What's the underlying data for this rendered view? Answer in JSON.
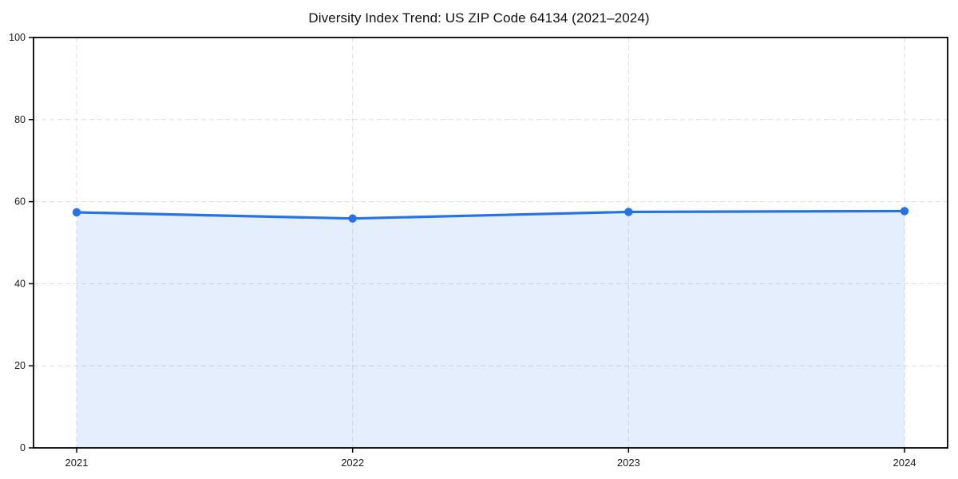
{
  "page": {
    "background_color": "#ffffff"
  },
  "chart_data": {
    "type": "area",
    "title": "Diversity Index Trend: US ZIP Code 64134 (2021–2024)",
    "x": [
      2021,
      2022,
      2023,
      2024
    ],
    "xtick_labels": [
      "2021",
      "2022",
      "2023",
      "2024"
    ],
    "series": [
      {
        "name": "Diversity Index",
        "values": [
          57.4,
          55.9,
          57.5,
          57.7
        ]
      }
    ],
    "xlabel": "",
    "ylabel": "",
    "ylim": [
      0,
      100
    ],
    "yticks": [
      0,
      20,
      40,
      60,
      80,
      100
    ],
    "grid": true,
    "grid_style": "dashed",
    "legend_position": "none",
    "line_color": "#2573e7",
    "marker_color": "#2573e7",
    "fill_color": "#2573e7",
    "fill_opacity": 0.12,
    "grid_color": "#dedede",
    "axis_color": "#000000",
    "tick_label_color": "#1a1a1a"
  }
}
